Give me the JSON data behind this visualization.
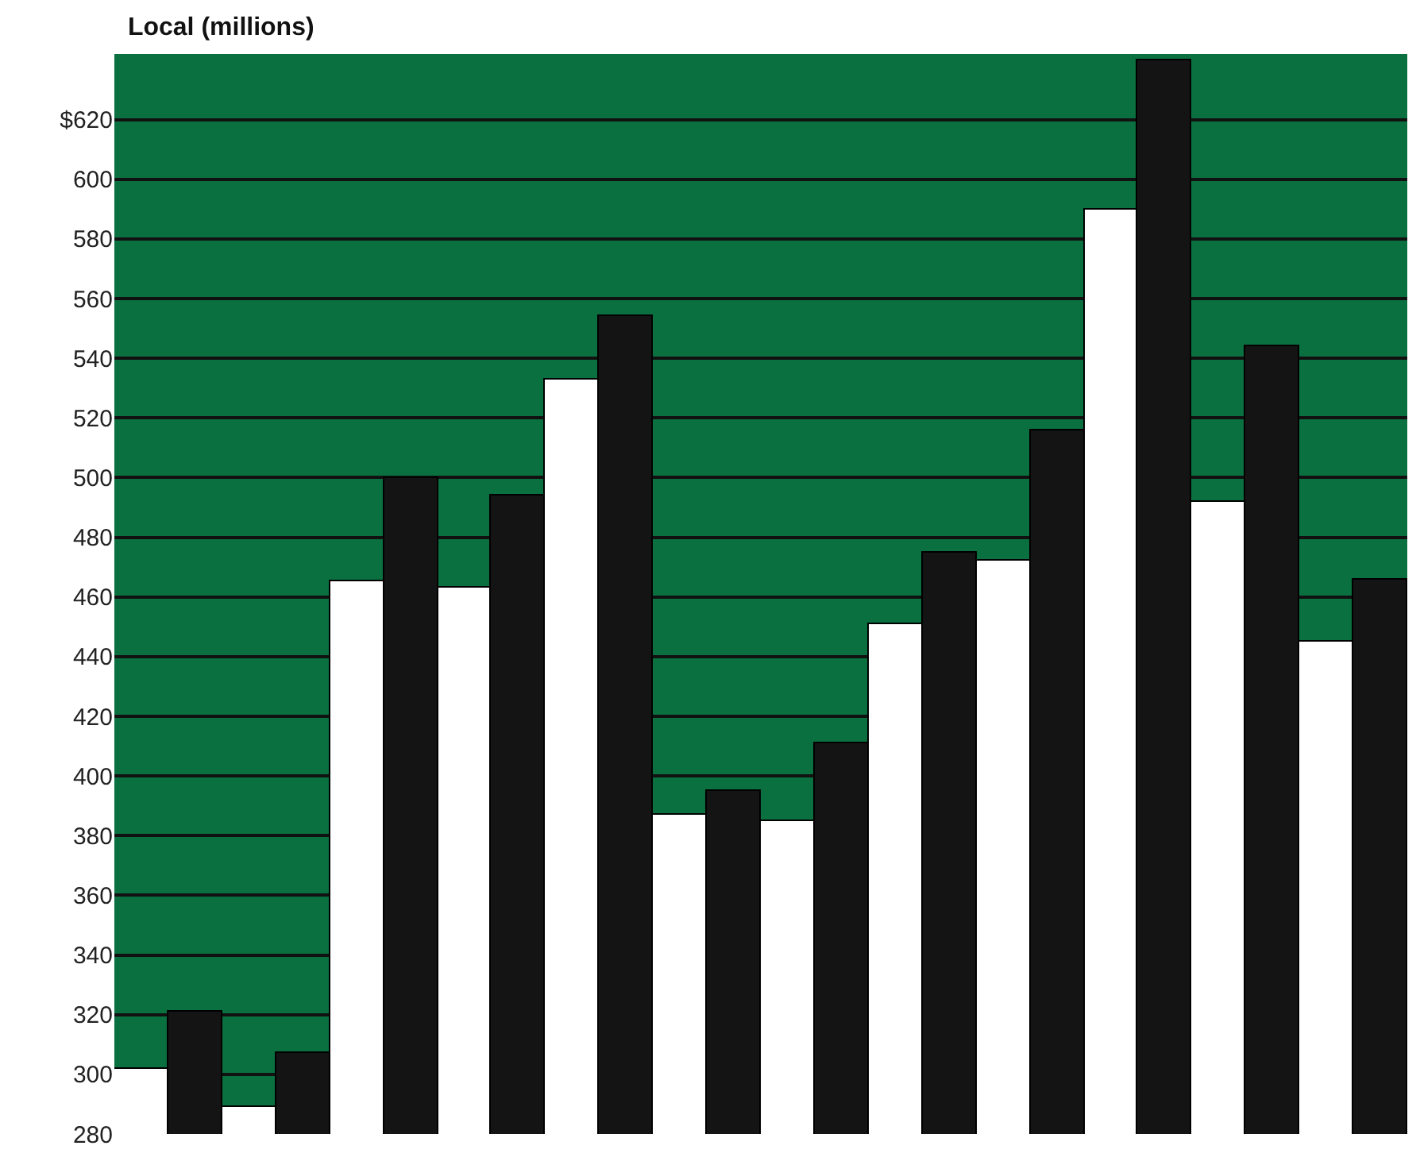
{
  "chart_data": {
    "type": "bar",
    "title": "Local (millions)",
    "categories": [
      null,
      null,
      null,
      null,
      null,
      null,
      null,
      null,
      null,
      null,
      null,
      null
    ],
    "series": [
      {
        "color": "#ffffff",
        "values": [
          302,
          289,
          465,
          463,
          533,
          387,
          385,
          451,
          472,
          590,
          492,
          445
        ]
      },
      {
        "color": "#141414",
        "values": [
          321,
          307,
          500,
          494,
          554,
          395,
          411,
          475,
          516,
          640,
          544,
          466
        ]
      }
    ],
    "ylim": [
      280,
      642
    ],
    "yticks": [
      280,
      300,
      320,
      340,
      360,
      380,
      400,
      420,
      440,
      460,
      480,
      500,
      520,
      540,
      560,
      580,
      600,
      {
        "value": 620,
        "label": "$620"
      }
    ],
    "grid": "y"
  }
}
